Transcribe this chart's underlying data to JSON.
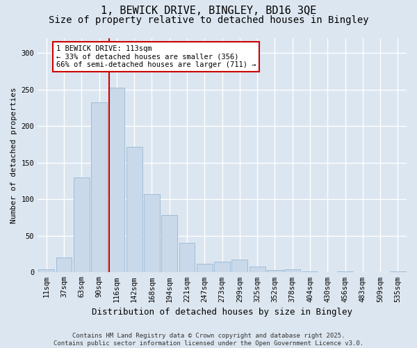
{
  "title_line1": "1, BEWICK DRIVE, BINGLEY, BD16 3QE",
  "title_line2": "Size of property relative to detached houses in Bingley",
  "xlabel": "Distribution of detached houses by size in Bingley",
  "ylabel": "Number of detached properties",
  "categories": [
    "11sqm",
    "37sqm",
    "63sqm",
    "90sqm",
    "116sqm",
    "142sqm",
    "168sqm",
    "194sqm",
    "221sqm",
    "247sqm",
    "273sqm",
    "299sqm",
    "325sqm",
    "352sqm",
    "378sqm",
    "404sqm",
    "430sqm",
    "456sqm",
    "483sqm",
    "509sqm",
    "535sqm"
  ],
  "values": [
    4,
    20,
    130,
    232,
    252,
    172,
    107,
    78,
    40,
    12,
    15,
    17,
    8,
    3,
    4,
    1,
    0,
    1,
    0,
    0,
    1
  ],
  "bar_color": "#c9d9ea",
  "bar_edge_color": "#a0bcd8",
  "bar_linewidth": 0.7,
  "marker_bar_index": 4,
  "marker_color": "#cc0000",
  "annotation_text": "1 BEWICK DRIVE: 113sqm\n← 33% of detached houses are smaller (356)\n66% of semi-detached houses are larger (711) →",
  "annotation_box_edgecolor": "#cc0000",
  "annotation_fontsize": 7.5,
  "ylim": [
    0,
    320
  ],
  "yticks": [
    0,
    50,
    100,
    150,
    200,
    250,
    300
  ],
  "fig_background": "#dce6f0",
  "plot_background": "#dce6f0",
  "grid_color": "#ffffff",
  "footer_text": "Contains HM Land Registry data © Crown copyright and database right 2025.\nContains public sector information licensed under the Open Government Licence v3.0.",
  "title_fontsize": 11,
  "subtitle_fontsize": 10,
  "xlabel_fontsize": 9,
  "ylabel_fontsize": 8,
  "tick_fontsize": 7.5,
  "footer_fontsize": 6.5
}
